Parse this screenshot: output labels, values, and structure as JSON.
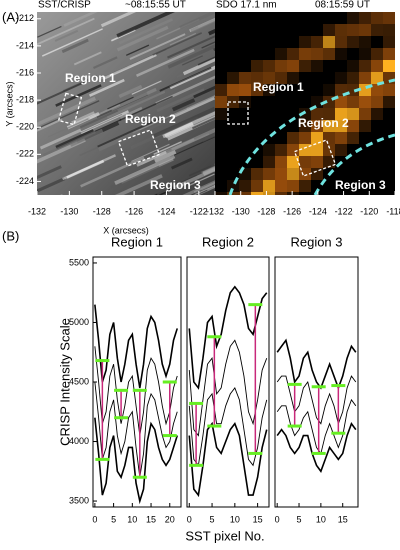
{
  "panel_a": {
    "label": "(A)",
    "ylabel": "Y (arcsecs)",
    "xlabel": "X (arcsecs)",
    "ylim": [
      -211.5,
      -225
    ],
    "yticks": [
      -212,
      -214,
      -216,
      -218,
      -220,
      -222,
      -224
    ],
    "images": [
      {
        "title": "SST/CRISP",
        "time": "~08:15:55 UT",
        "xlim": [
          -132,
          -121
        ],
        "xticks": [
          -132,
          -130,
          -128,
          -126,
          -124,
          -122
        ],
        "region_labels": [
          "Region 1",
          "Region 2",
          "Region 3"
        ]
      },
      {
        "title": "SDO 17.1 nm",
        "time": "08:15:59 UT",
        "xlim": [
          -132,
          -118
        ],
        "xticks": [
          -132,
          -130,
          -128,
          -126,
          -124,
          -122,
          -120,
          -118
        ],
        "region_labels": [
          "Region 1",
          "Region 2",
          "Region 3"
        ]
      }
    ]
  },
  "panel_b": {
    "label": "(B)",
    "ylabel": "CRISP Intensity Scale",
    "xlabel": "SST pixel No."
  },
  "chart_data": [
    {
      "type": "line",
      "title": "Region 1",
      "xlim": [
        -0.5,
        23
      ],
      "xticks": [
        0,
        5,
        10,
        15,
        20
      ],
      "ylim": [
        3450,
        5550
      ],
      "yticks": [
        3500,
        4000,
        4500,
        5000,
        5500
      ],
      "x": [
        0,
        1,
        2,
        3,
        4,
        5,
        6,
        7,
        8,
        9,
        10,
        11,
        12,
        13,
        14,
        15,
        16,
        17,
        18,
        19,
        20,
        21,
        22
      ],
      "series": [
        {
          "color": "#000000",
          "values": [
            5150,
            4850,
            4500,
            4600,
            4900,
            5000,
            4700,
            4500,
            4650,
            4850,
            4900,
            4650,
            4450,
            4650,
            4950,
            5050,
            5000,
            4850,
            4650,
            4550,
            4650,
            4850,
            4950
          ]
        },
        {
          "color": "#000000",
          "values": [
            4800,
            4500,
            4150,
            4250,
            4550,
            4650,
            4350,
            4150,
            4300,
            4500,
            4550,
            4300,
            4050,
            4250,
            4600,
            4700,
            4650,
            4500,
            4300,
            4150,
            4250,
            4450,
            4550
          ]
        },
        {
          "color": "#000000",
          "values": [
            4500,
            4200,
            3850,
            3950,
            4250,
            4350,
            4050,
            3900,
            4000,
            4200,
            4250,
            3950,
            3700,
            3900,
            4300,
            4400,
            4350,
            4200,
            4050,
            3950,
            4000,
            4150,
            4250
          ]
        },
        {
          "color": "#000000",
          "values": [
            4200,
            3900,
            3550,
            3650,
            3950,
            4050,
            3750,
            3700,
            3800,
            3950,
            3950,
            3650,
            3500,
            3600,
            4000,
            4150,
            4100,
            3950,
            3850,
            3800,
            3850,
            3950,
            4050
          ]
        }
      ],
      "pink_lines": {
        "color": "#c8287a",
        "x": [
          2,
          7,
          12,
          20
        ],
        "top": [
          4680,
          4430,
          4430,
          4500
        ],
        "bottom": [
          3850,
          4200,
          3700,
          4050
        ]
      },
      "green_color": "#66ee22"
    },
    {
      "type": "line",
      "title": "Region 2",
      "xlim": [
        -0.5,
        17.5
      ],
      "xticks": [
        0,
        5,
        10,
        15
      ],
      "ylim": [
        3450,
        5550
      ],
      "x": [
        0,
        1,
        2,
        3,
        4,
        5,
        6,
        7,
        8,
        9,
        10,
        11,
        12,
        13,
        14,
        15,
        16,
        17
      ],
      "series": [
        {
          "color": "#000000",
          "values": [
            4950,
            4500,
            4450,
            4700,
            5000,
            5050,
            4800,
            4900,
            5100,
            5250,
            5300,
            5250,
            5150,
            4950,
            4900,
            5050,
            5200,
            5250
          ]
        },
        {
          "color": "#000000",
          "values": [
            4600,
            4100,
            4050,
            4350,
            4650,
            4700,
            4400,
            4450,
            4650,
            4800,
            4850,
            4750,
            4550,
            4250,
            4150,
            4350,
            4600,
            4700
          ]
        },
        {
          "color": "#000000",
          "values": [
            4300,
            3850,
            3800,
            4050,
            4350,
            4400,
            4150,
            4150,
            4300,
            4400,
            4450,
            4350,
            4100,
            3850,
            3800,
            3950,
            4200,
            4350
          ]
        },
        {
          "color": "#000000",
          "values": [
            4050,
            3600,
            3550,
            3800,
            4100,
            4150,
            3950,
            3900,
            4000,
            4100,
            4150,
            4050,
            3800,
            3550,
            3550,
            3700,
            3950,
            4100
          ]
        }
      ],
      "pink_lines": {
        "color": "#c8287a",
        "x": [
          1.5,
          5.5,
          14.5
        ],
        "top": [
          4320,
          4880,
          5150
        ],
        "bottom": [
          3800,
          4130,
          3900
        ]
      },
      "green_color": "#66ee22"
    },
    {
      "type": "line",
      "title": "Region 3",
      "xlim": [
        -0.5,
        18.5
      ],
      "xticks": [
        0,
        5,
        10,
        15
      ],
      "ylim": [
        3450,
        5550
      ],
      "x": [
        0,
        1,
        2,
        3,
        4,
        5,
        6,
        7,
        8,
        9,
        10,
        11,
        12,
        13,
        14,
        15,
        16,
        17,
        18
      ],
      "series": [
        {
          "color": "#000000",
          "values": [
            4750,
            4800,
            4850,
            4700,
            4500,
            4550,
            4700,
            4750,
            4600,
            4500,
            4450,
            4550,
            4650,
            4550,
            4450,
            4550,
            4700,
            4800,
            4750
          ]
        },
        {
          "color": "#000000",
          "values": [
            4500,
            4550,
            4550,
            4400,
            4250,
            4300,
            4450,
            4500,
            4350,
            4200,
            4150,
            4300,
            4400,
            4300,
            4150,
            4250,
            4450,
            4550,
            4500
          ]
        },
        {
          "color": "#000000",
          "values": [
            4250,
            4300,
            4300,
            4150,
            4050,
            4100,
            4200,
            4250,
            4100,
            3950,
            3900,
            4050,
            4150,
            4050,
            3950,
            4050,
            4250,
            4350,
            4300
          ]
        },
        {
          "color": "#000000",
          "values": [
            4050,
            4100,
            4050,
            3950,
            3900,
            3950,
            4050,
            4050,
            3900,
            3800,
            3750,
            3850,
            3950,
            3900,
            3850,
            3900,
            4050,
            4150,
            4100
          ]
        }
      ],
      "pink_lines": {
        "color": "#c8287a",
        "x": [
          4,
          9.5,
          14
        ],
        "top": [
          4480,
          4460,
          4470
        ],
        "bottom": [
          4130,
          3900,
          4070
        ]
      },
      "green_color": "#66ee22"
    }
  ]
}
